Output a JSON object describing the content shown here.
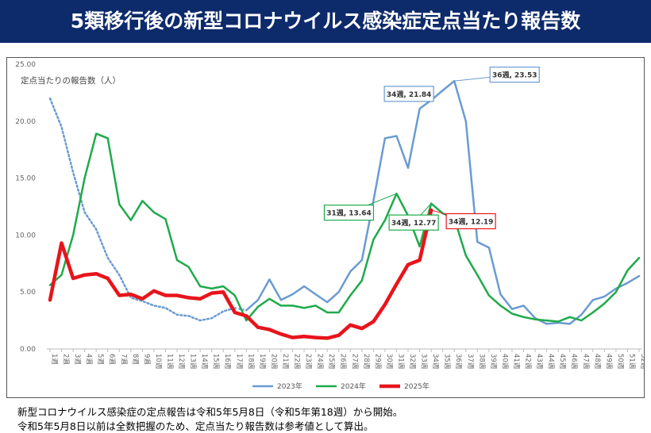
{
  "chart_data": {
    "type": "line",
    "title": "5類移行後の新型コロナウイルス感染症定点当たり報告数",
    "y_label": "定点当たりの報告数（人）",
    "categories": [
      "1週",
      "2週",
      "3週",
      "4週",
      "5週",
      "6週",
      "7週",
      "8週",
      "9週",
      "10週",
      "11週",
      "12週",
      "13週",
      "14週",
      "15週",
      "16週",
      "17週",
      "18週",
      "19週",
      "20週",
      "21週",
      "22週",
      "23週",
      "24週",
      "25週",
      "26週",
      "27週",
      "28週",
      "29週",
      "30週",
      "31週",
      "32週",
      "33週",
      "34週",
      "35週",
      "36週",
      "37週",
      "38週",
      "39週",
      "40週",
      "41週",
      "42週",
      "43週",
      "44週",
      "45週",
      "46週",
      "47週",
      "48週",
      "49週",
      "50週",
      "51週",
      "52週"
    ],
    "series": [
      {
        "name": "2023年",
        "color": "#6a9bd1",
        "width": 2.5,
        "solid_from": "18週",
        "values": [
          22.0,
          19.5,
          15.5,
          12.0,
          10.5,
          8.0,
          6.5,
          4.5,
          4.2,
          3.8,
          3.6,
          3.0,
          2.9,
          2.5,
          2.7,
          3.3,
          3.6,
          3.4,
          4.3,
          6.1,
          4.3,
          4.8,
          5.5,
          4.8,
          4.1,
          5.0,
          6.8,
          7.8,
          13.0,
          18.5,
          18.7,
          15.9,
          21.1,
          21.84,
          22.7,
          23.53,
          20.0,
          9.4,
          8.9,
          4.8,
          3.5,
          3.8,
          2.7,
          2.2,
          2.3,
          2.2,
          3.0,
          4.3,
          4.6,
          5.3,
          5.8,
          6.4
        ]
      },
      {
        "name": "2024年",
        "color": "#1faa4b",
        "width": 2.5,
        "values": [
          5.6,
          6.5,
          10.0,
          15.0,
          18.9,
          18.5,
          12.7,
          11.3,
          13.0,
          12.0,
          11.4,
          7.8,
          7.2,
          5.5,
          5.3,
          5.5,
          4.7,
          2.5,
          3.7,
          4.4,
          3.8,
          3.8,
          3.6,
          3.8,
          3.2,
          3.2,
          4.7,
          6.0,
          9.6,
          11.3,
          13.64,
          11.7,
          9.0,
          12.77,
          11.9,
          11.5,
          8.2,
          6.5,
          4.7,
          3.8,
          3.1,
          2.8,
          2.6,
          2.5,
          2.4,
          2.8,
          2.5,
          3.2,
          4.0,
          5.0,
          6.9,
          8.0
        ]
      },
      {
        "name": "2025年",
        "color": "#e8141b",
        "width": 4.5,
        "values": [
          4.3,
          9.3,
          6.2,
          6.5,
          6.6,
          6.2,
          4.7,
          4.8,
          4.4,
          5.1,
          4.7,
          4.7,
          4.5,
          4.4,
          4.9,
          5.0,
          3.2,
          2.9,
          1.9,
          1.7,
          1.3,
          1.0,
          1.1,
          1.0,
          0.95,
          1.2,
          2.1,
          1.8,
          2.4,
          3.9,
          5.7,
          7.4,
          7.8,
          12.19,
          null,
          null,
          null,
          null,
          null,
          null,
          null,
          null,
          null,
          null,
          null,
          null,
          null,
          null,
          null,
          null,
          null,
          null
        ]
      }
    ],
    "ylim": [
      0,
      25
    ],
    "yticks": [
      {
        "value": 0,
        "label": "0.00"
      },
      {
        "value": 5,
        "label": "5.00"
      },
      {
        "value": 10,
        "label": "10.00"
      },
      {
        "value": 15,
        "label": "15.00"
      },
      {
        "value": 20,
        "label": "20.00"
      },
      {
        "value": 25,
        "label": "25.00"
      }
    ],
    "grid": false,
    "legend": "bottom",
    "annotations": [
      {
        "text": "34週, 21.84",
        "series": "2023年",
        "category": "34週"
      },
      {
        "text": "36週, 23.53",
        "series": "2023年",
        "category": "36週"
      },
      {
        "text": "31週, 13.64",
        "series": "2024年",
        "category": "31週"
      },
      {
        "text": "34週, 12.77",
        "series": "2024年",
        "category": "34週"
      },
      {
        "text": "34週, 12.19",
        "series": "2025年",
        "category": "34週"
      }
    ]
  },
  "notes": [
    "新型コロナウイルス感染症の定点報告は令和5年5月8日（令和5年第18週）から開始。",
    "令和5年5月8日以前は全数把握のため、定点当たり報告数は参考値として算出。"
  ]
}
